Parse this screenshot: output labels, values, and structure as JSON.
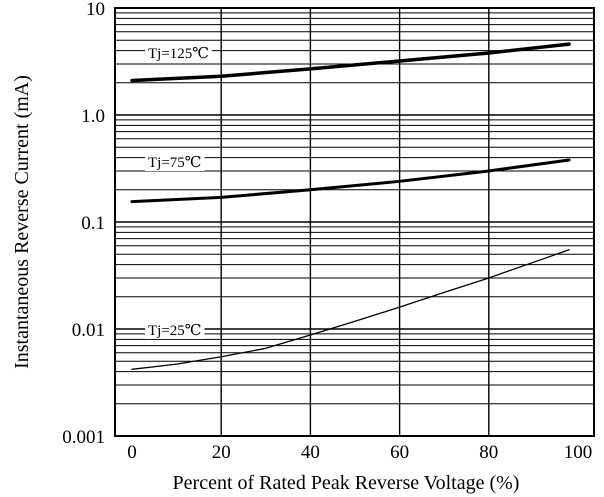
{
  "chart_data": {
    "type": "line",
    "xlabel": "Percent of Rated Peak Reverse Voltage (%)",
    "ylabel": "Instantaneous Reverse Current (mA)",
    "xlim": [
      0,
      100
    ],
    "ylim": [
      0.001,
      10
    ],
    "y_scale": "log",
    "grid": true,
    "x_ticks": [
      "0",
      "20",
      "40",
      "60",
      "80",
      "100"
    ],
    "y_ticks": [
      "0.001",
      "0.01",
      "0.1",
      "1.0",
      "10"
    ],
    "series": [
      {
        "name": "Tj=125℃",
        "x": [
          0,
          20,
          40,
          60,
          80,
          98
        ],
        "y": [
          2.1,
          2.3,
          2.7,
          3.2,
          3.8,
          4.6
        ],
        "color": "#000000"
      },
      {
        "name": "Tj=75℃",
        "x": [
          0,
          20,
          40,
          60,
          80,
          98
        ],
        "y": [
          0.155,
          0.17,
          0.2,
          0.24,
          0.3,
          0.38
        ],
        "color": "#000000"
      },
      {
        "name": "Tj=25℃",
        "x": [
          0,
          10,
          20,
          30,
          40,
          50,
          60,
          70,
          80,
          90,
          98
        ],
        "y": [
          0.0042,
          0.0047,
          0.0055,
          0.0066,
          0.0088,
          0.0118,
          0.016,
          0.022,
          0.03,
          0.042,
          0.055
        ],
        "color": "#000000"
      }
    ]
  }
}
